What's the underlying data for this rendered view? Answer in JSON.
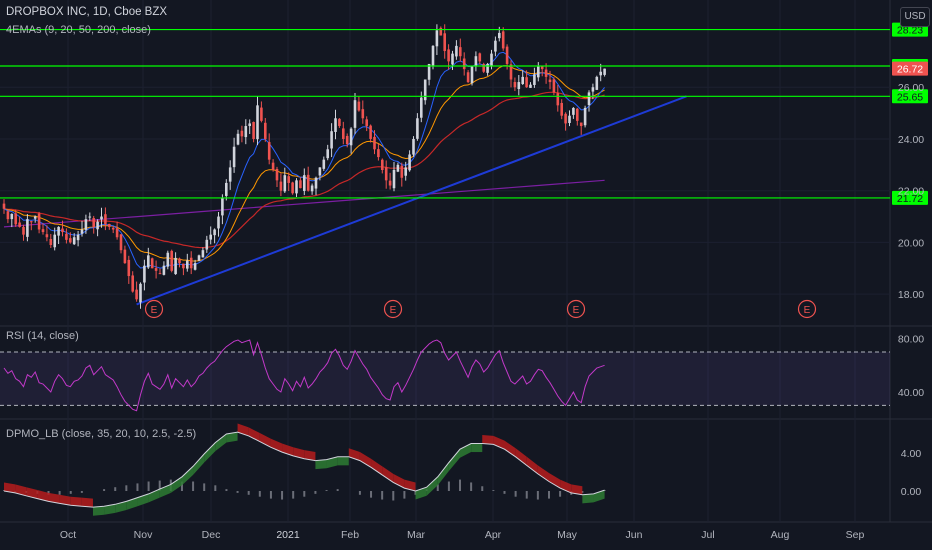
{
  "header": {
    "symbol": "DROPBOX INC, 1D, Cboe BZX",
    "ema_legend": "4EMAs (9, 20, 50, 200, close)",
    "currency": "USD",
    "rsi_legend": "RSI (14, close)",
    "dpmo_legend": "DPMO_LB (close, 35, 20, 10, 2.5, -2.5)"
  },
  "colors": {
    "background": "#131722",
    "up": "#d1d4dc",
    "down": "#ef5350",
    "support": "#00ff00",
    "trendline": "#1e3bd6",
    "ema9": "#2962ff",
    "ema20": "#ff9800",
    "ema50": "#c62828",
    "ema200": "#7b1fa2",
    "rsi": "#c239c9",
    "dpmo_up": "#2e7d32",
    "dpmo_down": "#b71c1c"
  },
  "chart_data": [
    {
      "type": "candlestick",
      "title": "DROPBOX INC, 1D, Cboe BZX",
      "x_ticks": [
        "Oct",
        "Nov",
        "Dec",
        "2021",
        "Feb",
        "Mar",
        "Apr",
        "May",
        "Jun",
        "Jul",
        "Aug",
        "Sep"
      ],
      "y_ticks": [
        "18.00",
        "20.00",
        "22.00",
        "24.00",
        "26.00"
      ],
      "ylim": [
        17.0,
        28.6
      ],
      "closes": [
        21.3,
        20.9,
        21.1,
        20.7,
        20.6,
        20.3,
        20.9,
        20.8,
        21.0,
        20.5,
        20.4,
        20.2,
        19.9,
        20.3,
        20.6,
        20.4,
        20.1,
        20.0,
        20.2,
        20.3,
        20.5,
        20.9,
        21.0,
        20.6,
        20.8,
        21.0,
        20.7,
        20.6,
        20.5,
        20.2,
        19.7,
        19.2,
        18.7,
        18.1,
        17.8,
        18.4,
        19.1,
        19.5,
        19.0,
        18.9,
        18.8,
        19.1,
        19.6,
        18.9,
        19.4,
        19.2,
        19.0,
        19.3,
        19.0,
        19.2,
        19.5,
        19.7,
        20.1,
        20.3,
        20.5,
        21.0,
        21.7,
        22.3,
        22.9,
        23.7,
        24.2,
        24.1,
        24.5,
        24.6,
        24.0,
        25.3,
        24.7,
        24.0,
        23.2,
        22.8,
        22.4,
        22.0,
        22.6,
        22.3,
        21.9,
        22.4,
        22.1,
        22.6,
        22.0,
        22.2,
        22.5,
        22.9,
        23.2,
        23.6,
        24.3,
        24.8,
        24.5,
        24.0,
        23.8,
        24.4,
        25.5,
        25.1,
        24.8,
        24.5,
        24.0,
        23.6,
        23.3,
        22.8,
        22.4,
        22.2,
        22.8,
        23.0,
        22.5,
        22.9,
        23.4,
        24.0,
        24.8,
        25.6,
        26.3,
        26.9,
        27.6,
        28.2,
        28.0,
        27.4,
        27.0,
        27.3,
        27.6,
        27.2,
        26.7,
        26.2,
        26.8,
        27.2,
        27.0,
        26.6,
        26.9,
        27.3,
        27.8,
        28.1,
        27.5,
        26.9,
        26.3,
        26.0,
        26.2,
        26.4,
        26.0,
        26.1,
        26.5,
        26.8,
        26.7,
        26.4,
        26.2,
        25.8,
        25.3,
        24.9,
        24.6,
        24.9,
        25.2,
        24.7,
        24.5,
        25.2,
        25.8,
        26.0,
        26.4,
        26.6,
        26.72
      ],
      "ema200": [
        20.6,
        20.8,
        21.0,
        21.2,
        21.4,
        21.6,
        21.8,
        22.0,
        22.2,
        22.4
      ],
      "support_levels": [
        28.23,
        26.82,
        25.65,
        21.72
      ],
      "last_price": 26.72,
      "earnings_markers": [
        "E",
        "E",
        "E",
        "E"
      ]
    },
    {
      "type": "line",
      "title": "RSI (14, close)",
      "y_ticks": [
        "80.00",
        "40.00"
      ],
      "ylim": [
        25,
        85
      ],
      "band": [
        70,
        30
      ],
      "series": [
        {
          "name": "RSI",
          "values": [
            58,
            54,
            56,
            50,
            48,
            44,
            53,
            51,
            55,
            47,
            46,
            43,
            40,
            48,
            53,
            50,
            45,
            44,
            48,
            49,
            52,
            58,
            60,
            53,
            56,
            59,
            53,
            51,
            49,
            44,
            38,
            33,
            30,
            27,
            26,
            38,
            48,
            54,
            46,
            44,
            42,
            46,
            53,
            43,
            50,
            47,
            44,
            49,
            44,
            47,
            52,
            54,
            58,
            61,
            63,
            67,
            71,
            74,
            76,
            78,
            79,
            77,
            78,
            79,
            68,
            77,
            68,
            58,
            50,
            46,
            42,
            40,
            50,
            46,
            41,
            48,
            44,
            51,
            43,
            46,
            50,
            55,
            58,
            62,
            69,
            72,
            67,
            60,
            57,
            63,
            71,
            66,
            61,
            57,
            51,
            47,
            43,
            38,
            35,
            34,
            44,
            47,
            40,
            45,
            51,
            57,
            64,
            70,
            73,
            76,
            78,
            79,
            77,
            69,
            64,
            67,
            70,
            63,
            57,
            51,
            59,
            64,
            61,
            55,
            58,
            63,
            68,
            71,
            62,
            55,
            48,
            46,
            49,
            52,
            46,
            48,
            53,
            57,
            56,
            51,
            47,
            42,
            37,
            33,
            30,
            35,
            40,
            34,
            32,
            44,
            52,
            55,
            58,
            59,
            60
          ]
        }
      ]
    },
    {
      "type": "area",
      "title": "DPMO_LB (close, 35, 20, 10, 2.5, -2.5)",
      "y_ticks": [
        "4.00",
        "0.00"
      ],
      "ylim": [
        -2.6,
        7.5
      ],
      "series": [
        {
          "name": "DPMO",
          "values": [
            0.0,
            -0.2,
            -0.5,
            -0.8,
            -1.1,
            -1.3,
            -1.5,
            -1.6,
            -1.7,
            -1.6,
            -1.4,
            -1.1,
            -0.7,
            -0.3,
            0.2,
            0.7,
            1.5,
            2.6,
            3.9,
            5.1,
            6.0,
            6.2,
            5.8,
            5.2,
            4.6,
            4.1,
            3.7,
            3.4,
            3.2,
            3.3,
            3.6,
            3.6,
            3.2,
            2.5,
            1.7,
            0.9,
            0.3,
            0.0,
            0.4,
            1.5,
            3.0,
            4.4,
            5.0,
            5.0,
            4.9,
            4.4,
            3.6,
            2.7,
            1.8,
            1.0,
            0.3,
            -0.2,
            -0.4,
            -0.3,
            0.1
          ]
        },
        {
          "name": "Histogram",
          "values": [
            0.05,
            -0.05,
            -0.1,
            -0.15,
            -0.2,
            -0.2,
            -0.15,
            -0.1,
            0.0,
            0.1,
            0.2,
            0.3,
            0.4,
            0.5,
            0.55,
            0.6,
            0.5,
            0.5,
            0.4,
            0.3,
            0.1,
            -0.1,
            -0.2,
            -0.3,
            -0.4,
            -0.45,
            -0.4,
            -0.3,
            -0.15,
            0.05,
            0.1,
            0.0,
            -0.2,
            -0.35,
            -0.45,
            -0.5,
            -0.4,
            -0.2,
            0.1,
            0.35,
            0.5,
            0.6,
            0.45,
            0.25,
            0.05,
            -0.15,
            -0.3,
            -0.4,
            -0.45,
            -0.4,
            -0.3,
            -0.2,
            -0.1,
            0.0,
            0.05
          ]
        }
      ]
    }
  ]
}
